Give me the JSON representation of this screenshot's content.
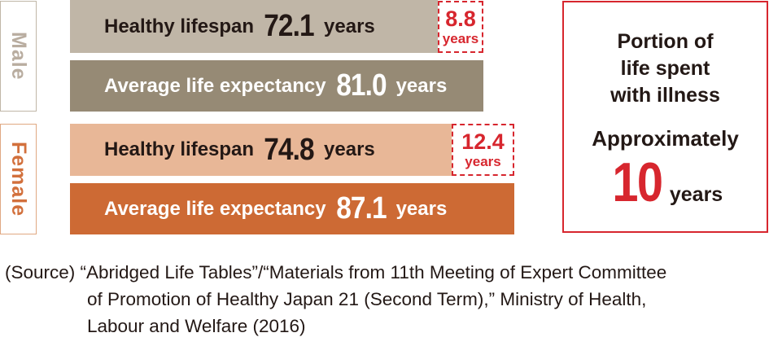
{
  "male": {
    "label": "Male",
    "healthy_lifespan": {
      "label": "Healthy lifespan",
      "value": "72.1",
      "unit": "years"
    },
    "average_life_expectancy": {
      "label": "Average life expectancy",
      "value": "81.0",
      "unit": "years"
    },
    "difference": {
      "value": "8.8",
      "unit": "years"
    }
  },
  "female": {
    "label": "Female",
    "healthy_lifespan": {
      "label": "Healthy lifespan",
      "value": "74.8",
      "unit": "years"
    },
    "average_life_expectancy": {
      "label": "Average life expectancy",
      "value": "87.1",
      "unit": "years"
    },
    "difference": {
      "value": "12.4",
      "unit": "years"
    }
  },
  "summary": {
    "line1": "Portion of",
    "line2": "life spent",
    "line3": "with illness",
    "approx": "Approximately",
    "value": "10",
    "unit": "years"
  },
  "source": {
    "line1": "(Source) “Abridged Life Tables”/“Materials from 11th Meeting of Expert Committee",
    "line2": "of Promotion of Healthy Japan 21 (Second Term),” Ministry of Health,",
    "line3": "Labour and Welfare (2016)"
  },
  "colors": {
    "male_healthy": "#c0b6a7",
    "male_average": "#968a75",
    "female_healthy": "#e8b797",
    "female_average": "#cd6a34",
    "accent_red": "#d7262e"
  },
  "chart_data": {
    "type": "bar",
    "orientation": "horizontal",
    "categories": [
      "Male",
      "Female"
    ],
    "series": [
      {
        "name": "Healthy lifespan",
        "values": [
          72.1,
          74.8
        ]
      },
      {
        "name": "Average life expectancy",
        "values": [
          81.0,
          87.1
        ]
      }
    ],
    "differences": [
      8.8,
      12.4
    ],
    "unit": "years"
  }
}
